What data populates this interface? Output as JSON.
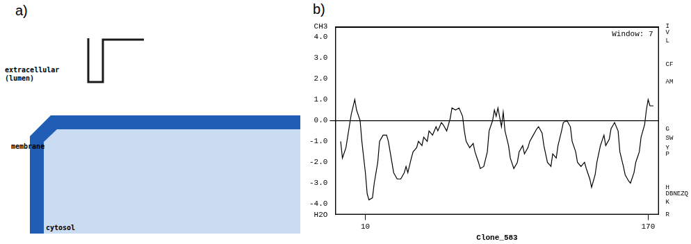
{
  "diagram": {
    "label": "a)",
    "labels": {
      "extracellular": [
        "extracellular",
        "(lumen)"
      ],
      "membrane": "membrane",
      "cytosol": "cytosol"
    }
  },
  "chart_data": {
    "type": "line",
    "panel_label": "b)",
    "x_label": "Clone_583",
    "annotations": [
      "Window: 7"
    ],
    "color": "#000000",
    "x": [
      -4,
      -3,
      -1,
      2,
      4,
      5,
      7,
      8,
      10,
      11,
      12,
      14,
      15,
      17,
      18,
      20,
      22,
      23,
      25,
      26,
      28,
      30,
      32,
      33,
      34,
      36,
      37,
      39,
      40,
      42,
      43,
      45,
      46,
      48,
      50,
      51,
      53,
      54,
      56,
      58,
      59,
      61,
      63,
      65,
      66,
      67,
      69,
      71,
      72,
      74,
      75,
      77,
      79,
      80,
      82,
      83,
      84,
      85,
      87,
      88,
      89,
      91,
      92,
      94,
      96,
      97,
      99,
      100,
      102,
      103,
      105,
      107,
      108,
      110,
      111,
      113,
      115,
      116,
      118,
      119,
      121,
      122,
      124,
      126,
      127,
      129,
      130,
      132,
      134,
      135,
      137,
      138,
      140,
      141,
      143,
      145,
      146,
      148,
      149,
      151,
      153,
      154,
      156,
      157,
      159,
      160,
      162,
      163,
      165,
      166,
      168,
      169,
      170,
      171,
      173
    ],
    "values": [
      -1.0,
      -1.8,
      -1.3,
      0.3,
      1.0,
      0.5,
      0.0,
      -1.0,
      -2.5,
      -3.5,
      -3.8,
      -3.7,
      -3.0,
      -2.0,
      -1.0,
      -0.7,
      -0.7,
      -1.0,
      -2.0,
      -2.5,
      -2.8,
      -2.8,
      -2.5,
      -2.2,
      -2.5,
      -1.8,
      -1.5,
      -1.3,
      -1.0,
      -1.2,
      -0.8,
      -1.0,
      -0.5,
      -0.7,
      -0.3,
      -0.5,
      -0.1,
      -0.2,
      -0.5,
      0.1,
      0.6,
      0.5,
      0.6,
      0.2,
      -0.5,
      -1.0,
      -1.3,
      -1.1,
      -1.5,
      -2.0,
      -2.3,
      -2.2,
      -1.5,
      -0.5,
      0.0,
      0.5,
      0.2,
      0.6,
      -0.3,
      0.4,
      -0.5,
      -1.2,
      -1.8,
      -2.3,
      -2.0,
      -1.5,
      -1.2,
      -1.6,
      -1.3,
      -1.0,
      -0.7,
      -0.4,
      -0.3,
      -0.6,
      -1.2,
      -2.0,
      -2.2,
      -1.6,
      -1.8,
      -1.2,
      -0.5,
      -0.1,
      0.0,
      -0.3,
      -1.0,
      -1.5,
      -2.0,
      -2.2,
      -2.0,
      -2.3,
      -2.8,
      -3.2,
      -2.6,
      -2.0,
      -1.2,
      -0.7,
      -1.2,
      -0.9,
      -0.4,
      -0.1,
      -0.5,
      -1.5,
      -2.2,
      -2.6,
      -2.9,
      -3.0,
      -2.5,
      -2.0,
      -1.5,
      -0.8,
      -0.2,
      0.5,
      1.0,
      0.7,
      0.7
    ],
    "xlim": [
      -7,
      176
    ],
    "xticks": [
      10,
      170
    ],
    "ylim": [
      -4.5,
      4.5
    ],
    "yticks": [
      {
        "value": 4.5,
        "label": "CH3"
      },
      {
        "value": 4,
        "label": "4.0"
      },
      {
        "value": 3,
        "label": "3.0"
      },
      {
        "value": 2,
        "label": "2.0"
      },
      {
        "value": 1,
        "label": "1.0"
      },
      {
        "value": 0,
        "label": "0.0"
      },
      {
        "value": -1,
        "label": "-1.0"
      },
      {
        "value": -2,
        "label": "-2.0"
      },
      {
        "value": -3,
        "label": "-3.0"
      },
      {
        "value": -4,
        "label": "-4.0"
      },
      {
        "value": -4.5,
        "label": "H2O"
      }
    ],
    "y2lim": [
      -4.5,
      4.5
    ],
    "y2ticks": [
      {
        "value": 4.5,
        "label": "I"
      },
      {
        "value": 4.2,
        "label": "V"
      },
      {
        "value": 3.8,
        "label": "L"
      },
      {
        "value": 2.7,
        "label": "CF"
      },
      {
        "value": 1.85,
        "label": "AM"
      },
      {
        "value": -0.4,
        "label": "G"
      },
      {
        "value": -0.85,
        "label": "SW"
      },
      {
        "value": -1.3,
        "label": "Y"
      },
      {
        "value": -1.6,
        "label": "P"
      },
      {
        "value": -3.2,
        "label": "H"
      },
      {
        "value": -3.5,
        "label": "DBNEZQ"
      },
      {
        "value": -3.9,
        "label": "K"
      },
      {
        "value": -4.5,
        "label": "R"
      }
    ]
  }
}
